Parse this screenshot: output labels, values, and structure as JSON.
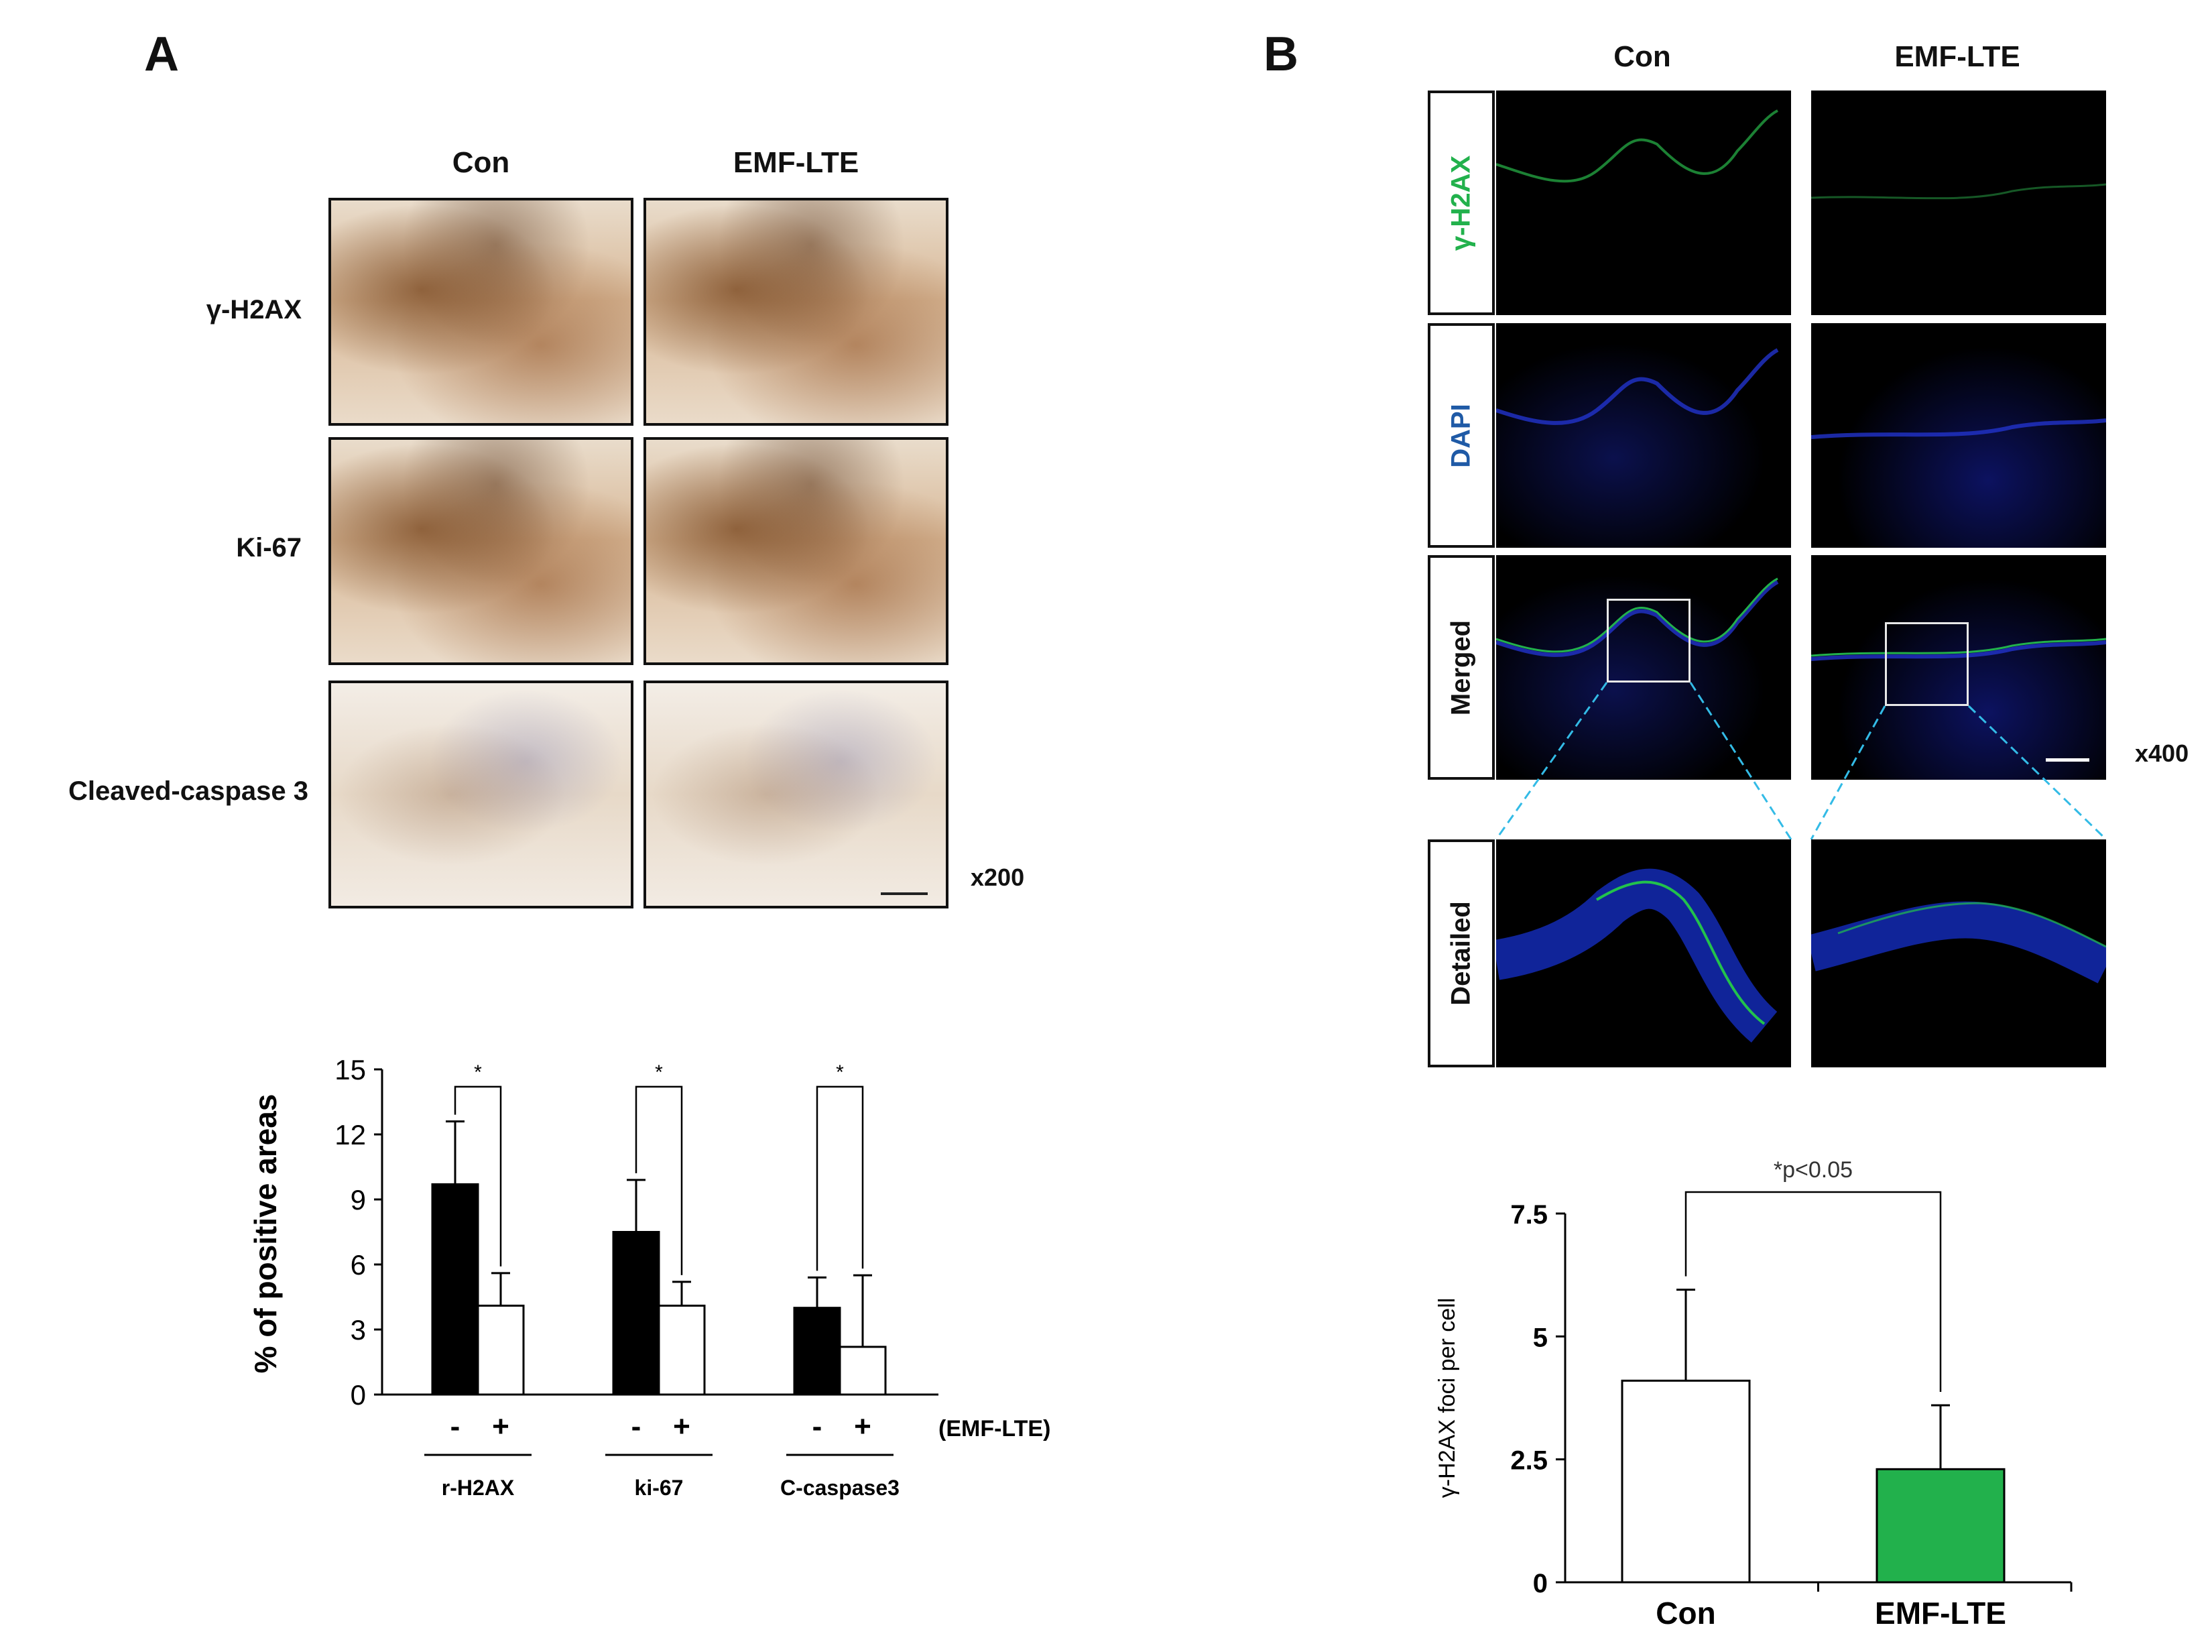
{
  "panelA": {
    "letter": "A",
    "col_heads": [
      "Con",
      "EMF-LTE"
    ],
    "row_labels": [
      "γ-H2AX",
      "Ki-67",
      "Cleaved-caspase 3"
    ],
    "magnification": "x200"
  },
  "panelB": {
    "letter": "B",
    "col_heads": [
      "Con",
      "EMF-LTE"
    ],
    "row_labels": {
      "h2ax": "γ-H2AX",
      "dapi": "DAPI",
      "merged": "Merged",
      "detailed": "Detailed"
    },
    "magnification": "x400",
    "colors": {
      "h2ax": "#22b14c",
      "dapi": "#1f5aa6"
    }
  },
  "chart_data": [
    {
      "type": "bar",
      "ylabel": "% of positive areas",
      "ylim": [
        0,
        15
      ],
      "yticks": [
        "0",
        "3",
        "6",
        "9",
        "12",
        "15"
      ],
      "groups": [
        "r-H2AX",
        "ki-67",
        "C-caspase3"
      ],
      "treatment_ticks": [
        "-",
        "+"
      ],
      "treatment_label": "(EMF-LTE)",
      "series": [
        {
          "treatment": "-",
          "values": [
            9.7,
            7.5,
            4.0
          ],
          "errors": [
            2.9,
            2.4,
            1.4
          ],
          "color": "#000000"
        },
        {
          "treatment": "+",
          "values": [
            4.1,
            4.1,
            2.2
          ],
          "errors": [
            1.5,
            1.1,
            3.3
          ],
          "color": "#ffffff"
        }
      ],
      "significance": [
        "*",
        "*",
        "*"
      ],
      "grid": false
    },
    {
      "type": "bar",
      "ylabel": "γ-H2AX foci per cell",
      "ylim": [
        0,
        7.5
      ],
      "yticks": [
        "0",
        "2.5",
        "5",
        "7.5"
      ],
      "categories": [
        "Con",
        "EMF-LTE"
      ],
      "values": [
        4.1,
        2.3
      ],
      "errors": [
        1.85,
        1.3
      ],
      "colors": [
        "#ffffff",
        "#22b14c"
      ],
      "significance": "*p<0.05",
      "grid": false
    }
  ]
}
